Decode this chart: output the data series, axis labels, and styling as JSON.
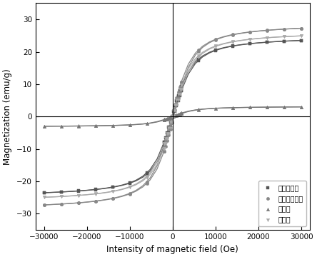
{
  "xlabel": "Intensity of magnetic field (Oe)",
  "ylabel": "Magnetization (emu/g)",
  "xlim": [
    -32000,
    32000
  ],
  "ylim": [
    -35,
    35
  ],
  "xticks": [
    -30000,
    -20000,
    -10000,
    0,
    10000,
    20000,
    30000
  ],
  "yticks": [
    -30,
    -20,
    -10,
    0,
    10,
    20,
    30
  ],
  "background_color": "#ffffff",
  "series": [
    {
      "label": "磁性膨润土",
      "marker": "s",
      "Ms": 25.0,
      "a": 1800,
      "Hc": 180,
      "color": "#555555"
    },
    {
      "label": "磁性凹凸棒土",
      "marker": "o",
      "Ms": 29.0,
      "a": 1800,
      "Hc": 180,
      "color": "#888888"
    },
    {
      "label": "生料球",
      "marker": "^",
      "Ms": 3.2,
      "a": 2000,
      "Hc": 180,
      "color": "#777777"
    },
    {
      "label": "吸附剂",
      "marker": "v",
      "Ms": 26.5,
      "a": 1800,
      "Hc": 180,
      "color": "#aaaaaa"
    }
  ]
}
